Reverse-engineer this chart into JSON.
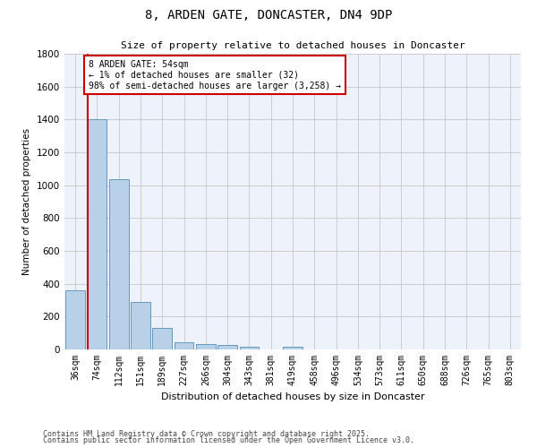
{
  "title": "8, ARDEN GATE, DONCASTER, DN4 9DP",
  "subtitle": "Size of property relative to detached houses in Doncaster",
  "xlabel": "Distribution of detached houses by size in Doncaster",
  "ylabel": "Number of detached properties",
  "categories": [
    "36sqm",
    "74sqm",
    "112sqm",
    "151sqm",
    "189sqm",
    "227sqm",
    "266sqm",
    "304sqm",
    "343sqm",
    "381sqm",
    "419sqm",
    "458sqm",
    "496sqm",
    "534sqm",
    "573sqm",
    "611sqm",
    "650sqm",
    "688sqm",
    "726sqm",
    "765sqm",
    "803sqm"
  ],
  "values": [
    360,
    1400,
    1035,
    290,
    130,
    42,
    35,
    25,
    18,
    0,
    18,
    0,
    0,
    0,
    0,
    0,
    0,
    0,
    0,
    0,
    0
  ],
  "bar_color": "#b8d0e8",
  "bar_edge_color": "#6699bb",
  "annotation_text_line1": "8 ARDEN GATE: 54sqm",
  "annotation_text_line2": "← 1% of detached houses are smaller (32)",
  "annotation_text_line3": "98% of semi-detached houses are larger (3,258) →",
  "annotation_border_color": "#cc0000",
  "vline_color": "#cc0000",
  "ylim": [
    0,
    1800
  ],
  "yticks": [
    0,
    200,
    400,
    600,
    800,
    1000,
    1200,
    1400,
    1600,
    1800
  ],
  "grid_color": "#cccccc",
  "bg_color": "#eef2fa",
  "footnote1": "Contains HM Land Registry data © Crown copyright and database right 2025.",
  "footnote2": "Contains public sector information licensed under the Open Government Licence v3.0."
}
